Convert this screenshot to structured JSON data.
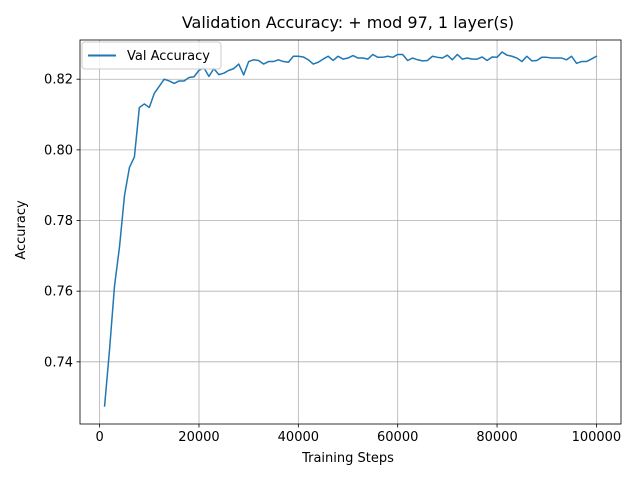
{
  "chart_data": {
    "type": "line",
    "title": "Validation Accuracy: + mod 97, 1 layer(s)",
    "xlabel": "Training Steps",
    "ylabel": "Accuracy",
    "xlim": [
      -3950,
      104950
    ],
    "ylim": [
      0.7224,
      0.8311
    ],
    "xticks": [
      0,
      20000,
      40000,
      60000,
      80000,
      100000
    ],
    "yticks": [
      0.74,
      0.76,
      0.78,
      0.8,
      0.82
    ],
    "ytick_labels": [
      "0.74",
      "0.76",
      "0.78",
      "0.80",
      "0.82"
    ],
    "grid": true,
    "legend_position": "upper-left",
    "series": [
      {
        "name": "Val Accuracy",
        "color": "#1f77b4",
        "x": [
          1000,
          2000,
          3000,
          4000,
          5000,
          6000,
          7000,
          8000,
          9000,
          10000,
          11000,
          12000,
          13000,
          14000,
          15000,
          16000,
          17000,
          18000,
          19000,
          20000,
          21000,
          22000,
          23000,
          24000,
          25000,
          26000,
          27000,
          28000,
          29000,
          30000,
          31000,
          32000,
          33000,
          34000,
          35000,
          36000,
          37000,
          38000,
          39000,
          40000,
          41000,
          42000,
          43000,
          44000,
          45000,
          46000,
          47000,
          48000,
          49000,
          50000,
          51000,
          52000,
          53000,
          54000,
          55000,
          56000,
          57000,
          58000,
          59000,
          60000,
          61000,
          62000,
          63000,
          64000,
          65000,
          66000,
          67000,
          68000,
          69000,
          70000,
          71000,
          72000,
          73000,
          74000,
          75000,
          76000,
          77000,
          78000,
          79000,
          80000,
          81000,
          82000,
          83000,
          84000,
          85000,
          86000,
          87000,
          88000,
          89000,
          90000,
          91000,
          92000,
          93000,
          94000,
          95000,
          96000,
          97000,
          98000,
          99000,
          100000
        ],
        "values": [
          0.7275,
          0.7435,
          0.7615,
          0.7725,
          0.787,
          0.795,
          0.798,
          0.812,
          0.813,
          0.812,
          0.816,
          0.818,
          0.82,
          0.8195,
          0.8188,
          0.8195,
          0.8195,
          0.8205,
          0.8207,
          0.8225,
          0.8232,
          0.8208,
          0.823,
          0.8213,
          0.8217,
          0.8225,
          0.823,
          0.8243,
          0.8212,
          0.825,
          0.8255,
          0.8253,
          0.8243,
          0.825,
          0.825,
          0.8255,
          0.825,
          0.8248,
          0.8265,
          0.8265,
          0.8263,
          0.8255,
          0.8243,
          0.8248,
          0.8257,
          0.8265,
          0.8253,
          0.8265,
          0.8257,
          0.826,
          0.8267,
          0.826,
          0.826,
          0.8257,
          0.827,
          0.8262,
          0.8262,
          0.8265,
          0.8262,
          0.827,
          0.827,
          0.8253,
          0.826,
          0.8255,
          0.8252,
          0.8253,
          0.8265,
          0.8262,
          0.826,
          0.8268,
          0.8255,
          0.827,
          0.8257,
          0.826,
          0.8257,
          0.8257,
          0.8263,
          0.8253,
          0.8263,
          0.8262,
          0.8277,
          0.8268,
          0.8265,
          0.826,
          0.825,
          0.8265,
          0.8252,
          0.8253,
          0.8262,
          0.8262,
          0.826,
          0.826,
          0.826,
          0.8255,
          0.8265,
          0.8245,
          0.825,
          0.825,
          0.8257,
          0.8265
        ]
      }
    ]
  }
}
